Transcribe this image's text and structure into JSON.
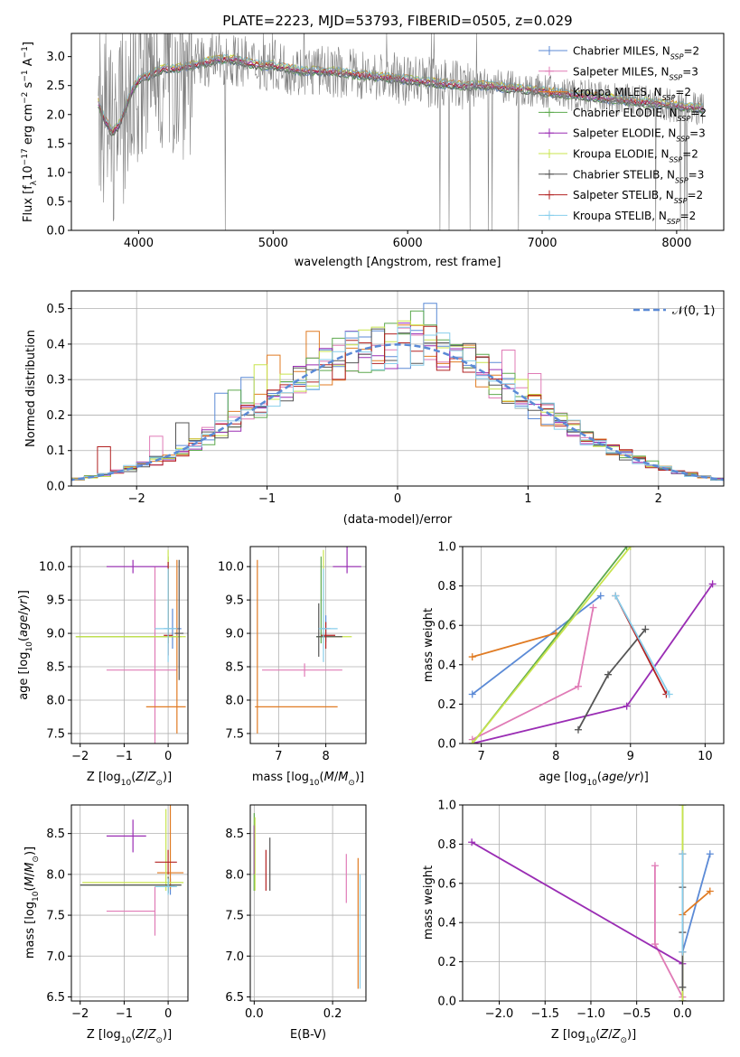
{
  "colors": {
    "Chabrier MILES": "#5b8ad6",
    "Salpeter MILES": "#e07bb6",
    "Kroupa MILES": "#e07b23",
    "Chabrier ELODIE": "#5da94e",
    "Salpeter ELODIE": "#9a2db4",
    "Kroupa ELODIE": "#c8e44d",
    "Chabrier STELIB": "#555555",
    "Salpeter STELIB": "#b22222",
    "Kroupa STELIB": "#87ceeb"
  },
  "chart_data": [
    {
      "id": "spectrum",
      "type": "line",
      "title": "PLATE=2223, MJD=53793, FIBERID=0505, z=0.029",
      "xlabel": "wavelength [Angstrom, rest frame]",
      "ylabel": "Flux [fλ10⁻¹⁷ erg cm⁻² s⁻¹ A⁻¹]",
      "xlim": [
        3500,
        8350
      ],
      "ylim": [
        0,
        3.4
      ],
      "xticks": [
        4000,
        5000,
        6000,
        7000,
        8000
      ],
      "yticks": [
        0.0,
        0.5,
        1.0,
        1.5,
        2.0,
        2.5,
        3.0
      ],
      "legend_position": "right",
      "continuum": {
        "x": [
          3700,
          3750,
          3800,
          3850,
          3900,
          3950,
          4000,
          4100,
          4200,
          4300,
          4400,
          4500,
          4600,
          4700,
          4800,
          4900,
          5000,
          5200,
          5400,
          5600,
          5800,
          6000,
          6200,
          6400,
          6600,
          6800,
          7000,
          7200,
          7400,
          7600,
          7800,
          8000,
          8200
        ],
        "y": [
          2.2,
          1.9,
          1.7,
          1.8,
          2.1,
          2.4,
          2.6,
          2.7,
          2.8,
          2.8,
          2.85,
          2.9,
          2.95,
          2.95,
          2.9,
          2.85,
          2.85,
          2.75,
          2.75,
          2.7,
          2.65,
          2.6,
          2.55,
          2.5,
          2.5,
          2.45,
          2.4,
          2.35,
          2.3,
          2.25,
          2.2,
          2.15,
          2.1
        ]
      },
      "series": [
        {
          "name": "Chabrier MILES, N_SSP=2"
        },
        {
          "name": "Salpeter MILES, N_SSP=3"
        },
        {
          "name": "Kroupa MILES, N_SSP=2"
        },
        {
          "name": "Chabrier ELODIE, N_SSP=2"
        },
        {
          "name": "Salpeter ELODIE, N_SSP=3"
        },
        {
          "name": "Kroupa ELODIE, N_SSP=2"
        },
        {
          "name": "Chabrier STELIB, N_SSP=3"
        },
        {
          "name": "Salpeter STELIB, N_SSP=2"
        },
        {
          "name": "Kroupa STELIB, N_SSP=2"
        }
      ]
    },
    {
      "id": "hist",
      "type": "line",
      "xlabel": "(data-model)/error",
      "ylabel": "Normed distribution",
      "xlim": [
        -2.5,
        2.5
      ],
      "ylim": [
        0,
        0.55
      ],
      "xticks": [
        -2,
        -1,
        0,
        1,
        2
      ],
      "yticks": [
        0.0,
        0.1,
        0.2,
        0.3,
        0.4,
        0.5
      ],
      "legend": "𝒩(0, 1)",
      "legend_position": "top-right",
      "normal": {
        "mean": 0,
        "sigma": 1
      }
    },
    {
      "id": "age_Z",
      "type": "scatter",
      "xlabel": "Z [log10(Z/Z⊙)]",
      "ylabel": "age  [log10(age/yr)]",
      "xlim": [
        -2.2,
        0.45
      ],
      "ylim": [
        7.35,
        10.3
      ],
      "xticks": [
        -2,
        -1,
        0
      ],
      "yticks": [
        7.5,
        8.0,
        8.5,
        9.0,
        9.5,
        10.0
      ],
      "points": [
        {
          "model": "Chabrier MILES",
          "x": 0.1,
          "y": 9.07,
          "xerr": [
            0.2,
            0.2
          ],
          "yerr": [
            0.3,
            0.3
          ]
        },
        {
          "model": "Salpeter MILES",
          "x": -0.3,
          "y": 8.45,
          "xerr": [
            1.1,
            0.5
          ],
          "yerr": [
            1.55,
            1.55
          ]
        },
        {
          "model": "Kroupa MILES",
          "x": 0.2,
          "y": 7.9,
          "xerr": [
            0.7,
            0.2
          ],
          "yerr": [
            0.4,
            2.2
          ]
        },
        {
          "model": "Chabrier ELODIE",
          "x": 0.0,
          "y": 8.95,
          "xerr": [
            2.1,
            0.3
          ],
          "yerr": [
            0.1,
            1.2
          ]
        },
        {
          "model": "Salpeter ELODIE",
          "x": -0.8,
          "y": 10.0,
          "xerr": [
            0.6,
            0.8
          ],
          "yerr": [
            0.1,
            0.1
          ]
        },
        {
          "model": "Kroupa ELODIE",
          "x": 0.0,
          "y": 8.95,
          "xerr": [
            2.1,
            0.4
          ],
          "yerr": [
            0.1,
            1.3
          ]
        },
        {
          "model": "Chabrier STELIB",
          "x": 0.25,
          "y": 9.0,
          "xerr": [
            0.1,
            0.1
          ],
          "yerr": [
            0.7,
            1.1
          ]
        },
        {
          "model": "Salpeter STELIB",
          "x": 0.0,
          "y": 8.97,
          "xerr": [
            0.1,
            0.1
          ],
          "yerr": [
            0.3,
            1.1
          ]
        },
        {
          "model": "Kroupa STELIB",
          "x": 0.0,
          "y": 9.07,
          "xerr": [
            0.3,
            0.2
          ],
          "yerr": [
            0.5,
            0.9
          ]
        }
      ]
    },
    {
      "id": "age_mass",
      "type": "scatter",
      "xlabel": "mass [log10(M/M⊙)]",
      "ylabel": "",
      "xlim": [
        6.4,
        8.85
      ],
      "ylim": [
        7.35,
        10.3
      ],
      "xticks": [
        7,
        8
      ],
      "yticks": [
        7.5,
        8.0,
        8.5,
        9.0,
        9.5,
        10.0
      ],
      "points": [
        {
          "model": "Chabrier MILES",
          "x": 8.0,
          "y": 9.07,
          "xerr": [
            0.1,
            0.1
          ],
          "yerr": [
            0.2,
            0.2
          ]
        },
        {
          "model": "Salpeter MILES",
          "x": 7.55,
          "y": 8.45,
          "xerr": [
            0.9,
            0.8
          ],
          "yerr": [
            0.1,
            0.1
          ]
        },
        {
          "model": "Kroupa MILES",
          "x": 6.55,
          "y": 7.9,
          "xerr": [
            0.05,
            1.7
          ],
          "yerr": [
            0.4,
            2.2
          ]
        },
        {
          "model": "Chabrier ELODIE",
          "x": 7.9,
          "y": 8.95,
          "xerr": [
            0.1,
            0.1
          ],
          "yerr": [
            0.1,
            1.2
          ]
        },
        {
          "model": "Salpeter ELODIE",
          "x": 8.45,
          "y": 10.0,
          "xerr": [
            0.3,
            0.3
          ],
          "yerr": [
            0.1,
            0.3
          ]
        },
        {
          "model": "Kroupa ELODIE",
          "x": 7.95,
          "y": 8.95,
          "xerr": [
            0.1,
            0.6
          ],
          "yerr": [
            0.1,
            1.3
          ]
        },
        {
          "model": "Chabrier STELIB",
          "x": 7.85,
          "y": 8.95,
          "xerr": [
            0.05,
            0.5
          ],
          "yerr": [
            0.3,
            0.5
          ]
        },
        {
          "model": "Salpeter STELIB",
          "x": 8.0,
          "y": 8.97,
          "xerr": [
            0.1,
            0.2
          ],
          "yerr": [
            0.2,
            0.2
          ]
        },
        {
          "model": "Kroupa STELIB",
          "x": 7.95,
          "y": 9.07,
          "xerr": [
            0.1,
            0.3
          ],
          "yerr": [
            0.5,
            0.9
          ]
        }
      ]
    },
    {
      "id": "weight_age",
      "type": "line",
      "xlabel": "age  [log10(age/yr)]",
      "ylabel": "mass weight",
      "xlim": [
        6.75,
        10.25
      ],
      "ylim": [
        0.0,
        1.0
      ],
      "xticks": [
        7,
        8,
        9,
        10
      ],
      "yticks": [
        0.0,
        0.2,
        0.4,
        0.6,
        0.8,
        1.0
      ],
      "series": [
        {
          "model": "Chabrier MILES",
          "x": [
            6.88,
            8.6
          ],
          "y": [
            0.25,
            0.75
          ]
        },
        {
          "model": "Salpeter MILES",
          "x": [
            6.88,
            8.3,
            8.5
          ],
          "y": [
            0.02,
            0.29,
            0.69
          ]
        },
        {
          "model": "Kroupa MILES",
          "x": [
            6.88,
            8.0
          ],
          "y": [
            0.44,
            0.56
          ]
        },
        {
          "model": "Chabrier ELODIE",
          "x": [
            6.88,
            8.95
          ],
          "y": [
            0.0,
            1.0
          ]
        },
        {
          "model": "Salpeter ELODIE",
          "x": [
            6.88,
            8.95,
            10.1
          ],
          "y": [
            0.0,
            0.19,
            0.81
          ]
        },
        {
          "model": "Kroupa ELODIE",
          "x": [
            6.88,
            9.0
          ],
          "y": [
            0.0,
            1.0
          ]
        },
        {
          "model": "Chabrier STELIB",
          "x": [
            8.3,
            8.7,
            9.2
          ],
          "y": [
            0.07,
            0.35,
            0.58
          ]
        },
        {
          "model": "Salpeter STELIB",
          "x": [
            8.8,
            9.48
          ],
          "y": [
            0.75,
            0.25
          ]
        },
        {
          "model": "Kroupa STELIB",
          "x": [
            8.8,
            9.52
          ],
          "y": [
            0.75,
            0.25
          ]
        }
      ]
    },
    {
      "id": "mass_Z",
      "type": "scatter",
      "xlabel": "Z [log10(Z/Z⊙)]",
      "ylabel": "mass [log10(M/M⊙)]",
      "xlim": [
        -2.2,
        0.45
      ],
      "ylim": [
        6.45,
        8.85
      ],
      "xticks": [
        -2,
        -1,
        0
      ],
      "yticks": [
        6.5,
        7.0,
        7.5,
        8.0,
        8.5
      ],
      "points": [
        {
          "model": "Chabrier MILES",
          "x": 0.05,
          "y": 7.85,
          "xerr": [
            0.1,
            0.1
          ],
          "yerr": [
            0.1,
            0.1
          ]
        },
        {
          "model": "Salpeter MILES",
          "x": -0.3,
          "y": 7.55,
          "xerr": [
            1.1,
            0.0
          ],
          "yerr": [
            0.3,
            0.3
          ]
        },
        {
          "model": "Kroupa MILES",
          "x": 0.05,
          "y": 8.02,
          "xerr": [
            0.3,
            0.3
          ],
          "yerr": [
            0.2,
            1.5
          ]
        },
        {
          "model": "Chabrier ELODIE",
          "x": 0.0,
          "y": 7.87,
          "xerr": [
            2.0,
            0.3
          ],
          "yerr": [
            0.1,
            0.1
          ]
        },
        {
          "model": "Salpeter ELODIE",
          "x": -0.8,
          "y": 8.47,
          "xerr": [
            0.6,
            0.3
          ],
          "yerr": [
            0.2,
            0.2
          ]
        },
        {
          "model": "Kroupa ELODIE",
          "x": -0.05,
          "y": 7.9,
          "xerr": [
            1.9,
            0.4
          ],
          "yerr": [
            0.1,
            0.9
          ]
        },
        {
          "model": "Chabrier STELIB",
          "x": 0.0,
          "y": 7.87,
          "xerr": [
            2.0,
            0.3
          ],
          "yerr": [
            0.1,
            0.1
          ]
        },
        {
          "model": "Salpeter STELIB",
          "x": 0.0,
          "y": 8.15,
          "xerr": [
            0.3,
            0.2
          ],
          "yerr": [
            0.15,
            0.15
          ]
        },
        {
          "model": "Kroupa STELIB",
          "x": 0.0,
          "y": 7.85,
          "xerr": [
            0.3,
            0.2
          ],
          "yerr": [
            0.1,
            0.1
          ]
        }
      ]
    },
    {
      "id": "mass_ebv",
      "type": "scatter",
      "xlabel": "E(B-V)",
      "ylabel": "",
      "xlim": [
        -0.01,
        0.285
      ],
      "ylim": [
        6.45,
        8.85
      ],
      "xticks": [
        0.0,
        0.2
      ],
      "yticks": [
        6.5,
        7.0,
        7.5,
        8.0,
        8.5
      ],
      "points": [
        {
          "model": "Chabrier MILES",
          "x": 0.0,
          "y": 8.2,
          "yerr": [
            0.4,
            0.4
          ]
        },
        {
          "model": "Salpeter MILES",
          "x": 0.235,
          "y": 7.95,
          "yerr": [
            0.3,
            0.3
          ]
        },
        {
          "model": "Kroupa MILES",
          "x": 0.265,
          "y": 7.4,
          "yerr": [
            0.8,
            0.8
          ]
        },
        {
          "model": "Chabrier ELODIE",
          "x": 0.0,
          "y": 8.3,
          "yerr": [
            0.5,
            0.45
          ]
        },
        {
          "model": "Salpeter ELODIE",
          "x": 0.0,
          "y": 8.3,
          "yerr": [
            0.3,
            0.3
          ]
        },
        {
          "model": "Kroupa ELODIE",
          "x": 0.002,
          "y": 8.25,
          "yerr": [
            0.45,
            0.45
          ]
        },
        {
          "model": "Chabrier STELIB",
          "x": 0.04,
          "y": 8.1,
          "yerr": [
            0.3,
            0.35
          ]
        },
        {
          "model": "Salpeter STELIB",
          "x": 0.03,
          "y": 8.05,
          "yerr": [
            0.25,
            0.25
          ]
        },
        {
          "model": "Kroupa STELIB",
          "x": 0.27,
          "y": 7.3,
          "yerr": [
            0.7,
            0.7
          ]
        }
      ]
    },
    {
      "id": "weight_Z",
      "type": "line",
      "xlabel": "Z [log10(Z/Z⊙)]",
      "ylabel": "mass weight",
      "xlim": [
        -2.4,
        0.45
      ],
      "ylim": [
        0.0,
        1.0
      ],
      "xticks": [
        -2.0,
        -1.5,
        -1.0,
        -0.5,
        0.0
      ],
      "yticks": [
        0.0,
        0.2,
        0.4,
        0.6,
        0.8,
        1.0
      ],
      "series": [
        {
          "model": "Chabrier MILES",
          "x": [
            0.0,
            0.3
          ],
          "y": [
            0.25,
            0.75
          ]
        },
        {
          "model": "Salpeter MILES",
          "x": [
            -0.3,
            -0.3,
            0.0
          ],
          "y": [
            0.69,
            0.29,
            0.02
          ]
        },
        {
          "model": "Kroupa MILES",
          "x": [
            0.0,
            0.3
          ],
          "y": [
            0.44,
            0.56
          ]
        },
        {
          "model": "Chabrier ELODIE",
          "x": [
            0.0,
            0.0
          ],
          "y": [
            0.0,
            1.0
          ]
        },
        {
          "model": "Salpeter ELODIE",
          "x": [
            -2.3,
            0.0,
            0.0
          ],
          "y": [
            0.81,
            0.19,
            0.0
          ]
        },
        {
          "model": "Kroupa ELODIE",
          "x": [
            0.0,
            0.0
          ],
          "y": [
            0.0,
            1.0
          ]
        },
        {
          "model": "Chabrier STELIB",
          "x": [
            0.0,
            0.0,
            0.0
          ],
          "y": [
            0.07,
            0.35,
            0.58
          ]
        },
        {
          "model": "Salpeter STELIB",
          "x": [
            0.0,
            0.0
          ],
          "y": [
            0.75,
            0.25
          ]
        },
        {
          "model": "Kroupa STELIB",
          "x": [
            0.0,
            0.0
          ],
          "y": [
            0.75,
            0.25
          ]
        }
      ]
    }
  ]
}
